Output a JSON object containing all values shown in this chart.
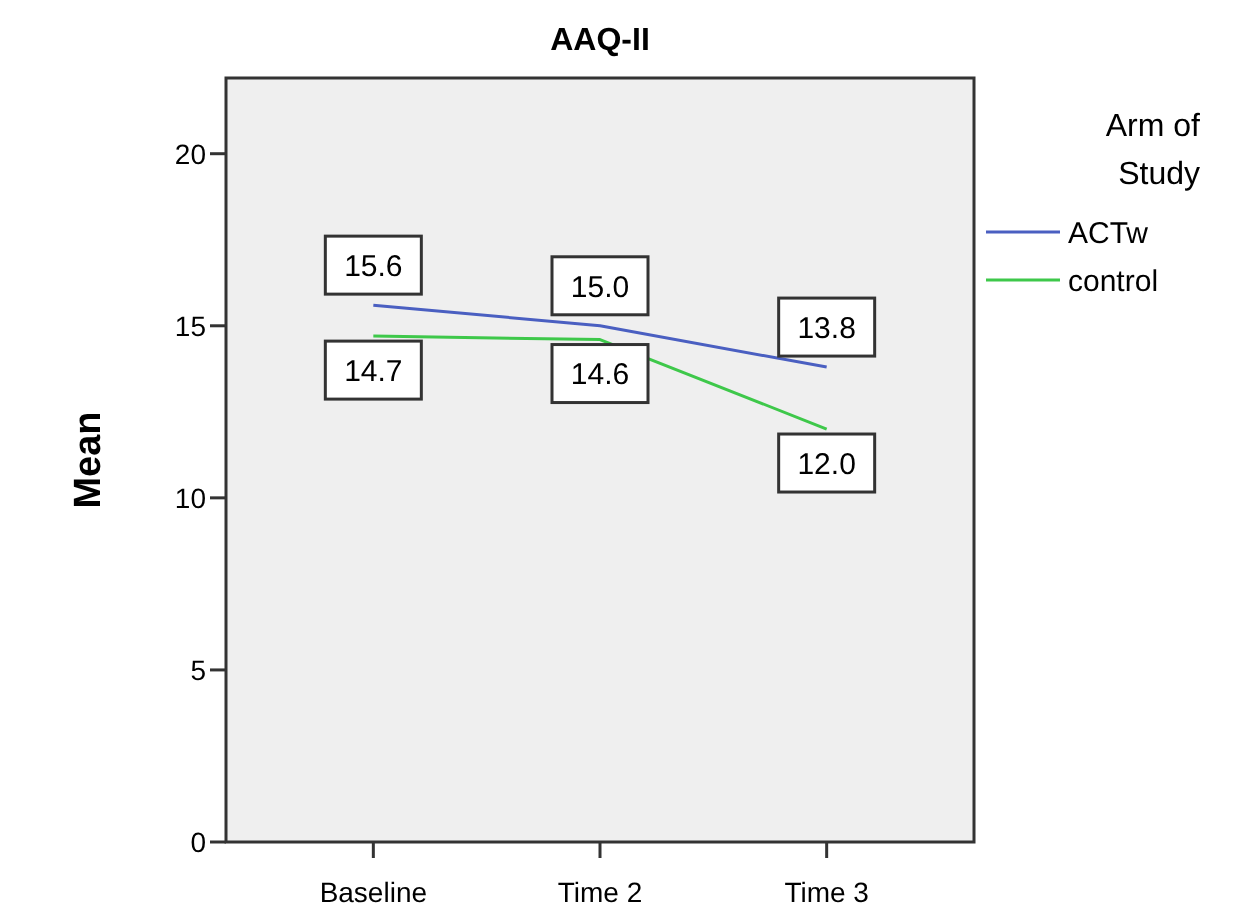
{
  "chart_data": {
    "type": "line",
    "title": "AAQ-II",
    "ylabel": "Mean",
    "legend_title": "Arm of Study",
    "categories": [
      "Baseline",
      "Time 2",
      "Time 3"
    ],
    "series": [
      {
        "name": "ACTw",
        "color": "#4a5fc1",
        "values": [
          15.6,
          15.0,
          13.8
        ],
        "value_labels": [
          "15.6",
          "15.0",
          "13.8"
        ]
      },
      {
        "name": "control",
        "color": "#3ec84a",
        "values": [
          14.7,
          14.6,
          12.0
        ],
        "value_labels": [
          "14.7",
          "14.6",
          "12.0"
        ]
      }
    ],
    "ylim": [
      0,
      22.2
    ],
    "yticks": [
      0,
      5,
      10,
      15,
      20
    ],
    "grid": false,
    "legend": "right",
    "marker": "none",
    "line_style": "solid"
  }
}
